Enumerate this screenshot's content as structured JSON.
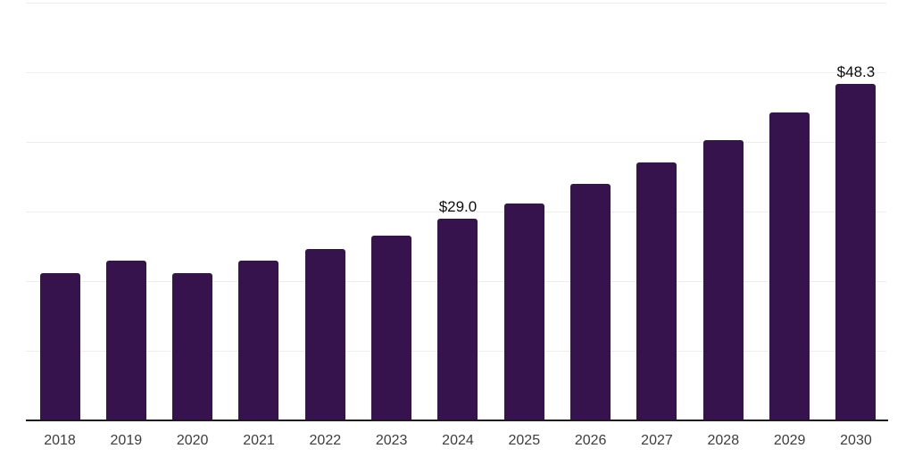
{
  "chart_data": {
    "type": "bar",
    "title": "",
    "xlabel": "",
    "ylabel": "",
    "categories": [
      "2018",
      "2019",
      "2020",
      "2021",
      "2022",
      "2023",
      "2024",
      "2025",
      "2026",
      "2027",
      "2028",
      "2029",
      "2030"
    ],
    "values": [
      21.2,
      23.0,
      21.1,
      22.9,
      24.6,
      26.6,
      29.0,
      31.2,
      34.0,
      37.0,
      40.3,
      44.2,
      48.3
    ],
    "value_labels": {
      "2024": "$29.0",
      "2030": "$48.3"
    },
    "ylim": [
      0,
      60
    ],
    "gridline_step": 10,
    "grid": "horizontal",
    "legend": "none",
    "y_axis_labels_visible": false,
    "colors": {
      "bar": "#36134d",
      "gridline": "#ededed",
      "axis_line": "#1c1c1c",
      "tick_label": "#3d3d3d",
      "value_label": "#0d0d0d",
      "background": "#ffffff"
    }
  }
}
